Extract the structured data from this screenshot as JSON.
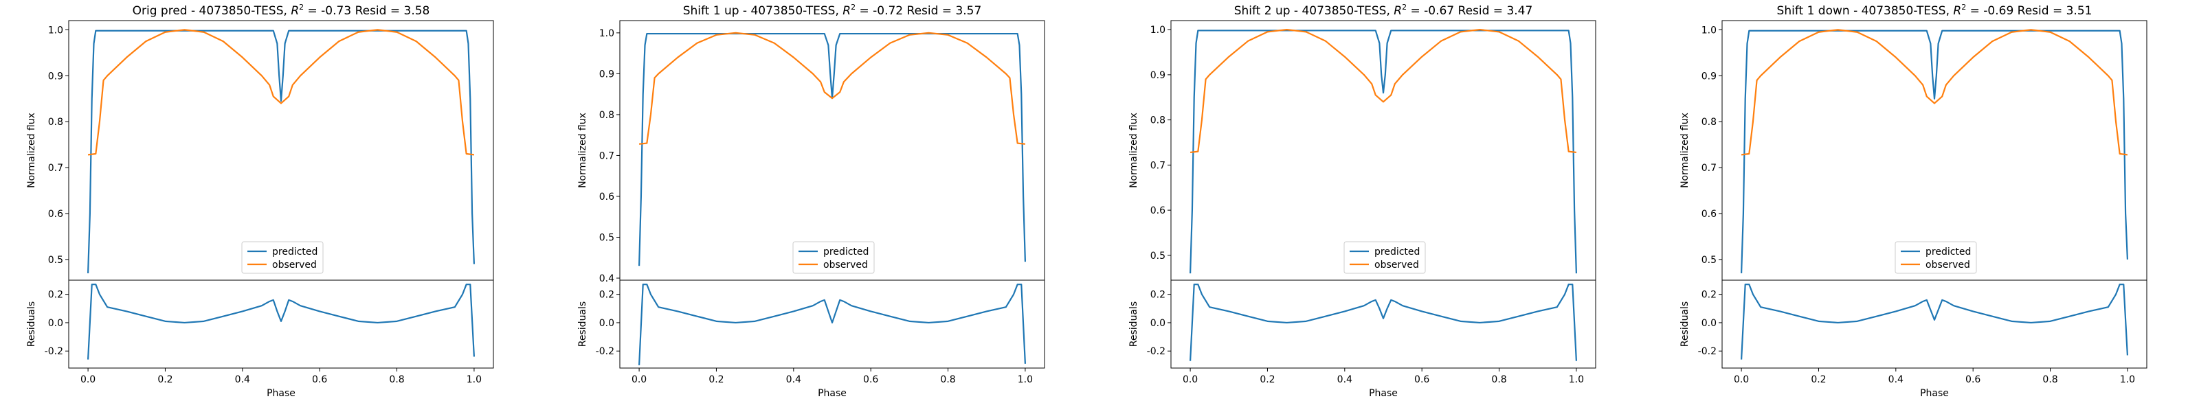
{
  "chart_data": [
    {
      "type": "line",
      "title": "Orig pred - 4073850-TESS, $R^2$ = -0.73 Resid = 3.58",
      "title_text": {
        "prefix": "Orig pred - 4073850-TESS, ",
        "r2": "R",
        "sup": "2",
        "suffix": " = -0.73 Resid = 3.58"
      },
      "xlabel": "Phase",
      "ylabel_top": "Normalized flux",
      "ylabel_bottom": "Residuals",
      "xlim": [
        -0.05,
        1.05
      ],
      "ylim_top": [
        0.455,
        1.02
      ],
      "ylim_bottom": [
        -0.32,
        0.3
      ],
      "xticks": [
        "0.0",
        "0.2",
        "0.4",
        "0.6",
        "0.8",
        "1.0"
      ],
      "yticks_top": [
        "0.5",
        "0.6",
        "0.7",
        "0.8",
        "0.9",
        "1.0"
      ],
      "yticks_bottom": [
        "-0.2",
        "0.0",
        "0.2"
      ],
      "legend": {
        "position": "lower-center",
        "entries": [
          "predicted",
          "observed"
        ]
      },
      "pred_edge": 0.47,
      "dip_bottom": 0.845,
      "series": [
        {
          "name": "predicted",
          "color": "#1f77b4",
          "x": [
            0.0,
            0.005,
            0.01,
            0.015,
            0.02,
            0.48,
            0.49,
            0.495,
            0.5,
            0.505,
            0.51,
            0.52,
            0.98,
            0.985,
            0.99,
            0.995,
            1.0
          ],
          "y": [
            0.47,
            0.6,
            0.85,
            0.97,
            0.998,
            0.998,
            0.97,
            0.9,
            0.845,
            0.9,
            0.97,
            0.998,
            0.998,
            0.97,
            0.85,
            0.6,
            0.49
          ]
        },
        {
          "name": "observed",
          "color": "#ff7f0e",
          "x": [
            0.0,
            0.02,
            0.03,
            0.04,
            0.05,
            0.1,
            0.15,
            0.2,
            0.25,
            0.3,
            0.35,
            0.4,
            0.45,
            0.47,
            0.48,
            0.5,
            0.52,
            0.53,
            0.55,
            0.6,
            0.65,
            0.7,
            0.75,
            0.8,
            0.85,
            0.9,
            0.95,
            0.96,
            0.97,
            0.98,
            1.0
          ],
          "y": [
            0.728,
            0.73,
            0.8,
            0.89,
            0.9,
            0.94,
            0.975,
            0.995,
            1.0,
            0.995,
            0.975,
            0.94,
            0.9,
            0.88,
            0.855,
            0.84,
            0.855,
            0.88,
            0.9,
            0.94,
            0.975,
            0.995,
            1.0,
            0.995,
            0.975,
            0.94,
            0.9,
            0.89,
            0.8,
            0.73,
            0.728
          ]
        },
        {
          "name": "residuals",
          "color": "#1f77b4",
          "x": [
            0.0,
            0.01,
            0.02,
            0.03,
            0.05,
            0.1,
            0.15,
            0.2,
            0.25,
            0.3,
            0.35,
            0.4,
            0.45,
            0.47,
            0.48,
            0.49,
            0.5,
            0.51,
            0.52,
            0.53,
            0.55,
            0.6,
            0.65,
            0.7,
            0.75,
            0.8,
            0.85,
            0.9,
            0.95,
            0.97,
            0.98,
            0.99,
            1.0
          ],
          "y": [
            -0.26,
            0.27,
            0.27,
            0.2,
            0.11,
            0.08,
            0.045,
            0.01,
            0.0,
            0.01,
            0.045,
            0.08,
            0.12,
            0.15,
            0.16,
            0.08,
            0.01,
            0.08,
            0.16,
            0.15,
            0.12,
            0.08,
            0.045,
            0.01,
            0.0,
            0.01,
            0.045,
            0.08,
            0.11,
            0.2,
            0.27,
            0.27,
            -0.24
          ]
        }
      ]
    },
    {
      "type": "line",
      "title": "Shift 1 up - 4073850-TESS, $R^2$ = -0.72 Resid = 3.57",
      "title_text": {
        "prefix": "Shift 1 up - 4073850-TESS, ",
        "r2": "R",
        "sup": "2",
        "suffix": " = -0.72 Resid = 3.57"
      },
      "xlabel": "Phase",
      "ylabel_top": "Normalized flux",
      "ylabel_bottom": "Residuals",
      "xlim": [
        -0.05,
        1.05
      ],
      "ylim_top": [
        0.395,
        1.03
      ],
      "ylim_bottom": [
        -0.32,
        0.3
      ],
      "xticks": [
        "0.0",
        "0.2",
        "0.4",
        "0.6",
        "0.8",
        "1.0"
      ],
      "yticks_top": [
        "0.4",
        "0.5",
        "0.6",
        "0.7",
        "0.8",
        "0.9",
        "1.0"
      ],
      "yticks_bottom": [
        "-0.2",
        "0.0",
        "0.2"
      ],
      "legend": {
        "position": "lower-center",
        "entries": [
          "predicted",
          "observed"
        ]
      },
      "series": [
        {
          "name": "predicted",
          "color": "#1f77b4",
          "x": [
            0.0,
            0.005,
            0.01,
            0.015,
            0.02,
            0.48,
            0.49,
            0.495,
            0.5,
            0.505,
            0.51,
            0.52,
            0.98,
            0.985,
            0.99,
            0.995,
            1.0
          ],
          "y": [
            0.43,
            0.6,
            0.85,
            0.97,
            0.998,
            0.998,
            0.97,
            0.9,
            0.84,
            0.9,
            0.97,
            0.998,
            0.998,
            0.97,
            0.85,
            0.6,
            0.44
          ]
        },
        {
          "name": "observed",
          "color": "#ff7f0e",
          "x": [
            0.0,
            0.02,
            0.03,
            0.04,
            0.05,
            0.1,
            0.15,
            0.2,
            0.25,
            0.3,
            0.35,
            0.4,
            0.45,
            0.47,
            0.48,
            0.5,
            0.52,
            0.53,
            0.55,
            0.6,
            0.65,
            0.7,
            0.75,
            0.8,
            0.85,
            0.9,
            0.95,
            0.96,
            0.97,
            0.98,
            1.0
          ],
          "y": [
            0.728,
            0.73,
            0.8,
            0.89,
            0.9,
            0.94,
            0.975,
            0.995,
            1.0,
            0.995,
            0.975,
            0.94,
            0.9,
            0.88,
            0.855,
            0.84,
            0.855,
            0.88,
            0.9,
            0.94,
            0.975,
            0.995,
            1.0,
            0.995,
            0.975,
            0.94,
            0.9,
            0.89,
            0.8,
            0.73,
            0.728
          ]
        },
        {
          "name": "residuals",
          "color": "#1f77b4",
          "x": [
            0.0,
            0.01,
            0.02,
            0.03,
            0.05,
            0.1,
            0.15,
            0.2,
            0.25,
            0.3,
            0.35,
            0.4,
            0.45,
            0.47,
            0.48,
            0.49,
            0.5,
            0.51,
            0.52,
            0.53,
            0.55,
            0.6,
            0.65,
            0.7,
            0.75,
            0.8,
            0.85,
            0.9,
            0.95,
            0.97,
            0.98,
            0.99,
            1.0
          ],
          "y": [
            -0.3,
            0.27,
            0.27,
            0.2,
            0.11,
            0.08,
            0.045,
            0.01,
            0.0,
            0.01,
            0.045,
            0.08,
            0.12,
            0.15,
            0.16,
            0.08,
            0.0,
            0.08,
            0.16,
            0.15,
            0.12,
            0.08,
            0.045,
            0.01,
            0.0,
            0.01,
            0.045,
            0.08,
            0.11,
            0.2,
            0.27,
            0.27,
            -0.29
          ]
        }
      ]
    },
    {
      "type": "line",
      "title": "Shift 2 up - 4073850-TESS, $R^2$ = -0.67 Resid = 3.47",
      "title_text": {
        "prefix": "Shift 2 up - 4073850-TESS, ",
        "r2": "R",
        "sup": "2",
        "suffix": " = -0.67 Resid = 3.47"
      },
      "xlabel": "Phase",
      "ylabel_top": "Normalized flux",
      "ylabel_bottom": "Residuals",
      "xlim": [
        -0.05,
        1.05
      ],
      "ylim_top": [
        0.445,
        1.02
      ],
      "ylim_bottom": [
        -0.32,
        0.3
      ],
      "xticks": [
        "0.0",
        "0.2",
        "0.4",
        "0.6",
        "0.8",
        "1.0"
      ],
      "yticks_top": [
        "0.5",
        "0.6",
        "0.7",
        "0.8",
        "0.9",
        "1.0"
      ],
      "yticks_bottom": [
        "-0.2",
        "0.0",
        "0.2"
      ],
      "legend": {
        "position": "lower-center",
        "entries": [
          "predicted",
          "observed"
        ]
      },
      "series": [
        {
          "name": "predicted",
          "color": "#1f77b4",
          "x": [
            0.0,
            0.005,
            0.01,
            0.015,
            0.02,
            0.48,
            0.49,
            0.495,
            0.5,
            0.505,
            0.51,
            0.52,
            0.98,
            0.985,
            0.99,
            0.995,
            1.0
          ],
          "y": [
            0.46,
            0.6,
            0.85,
            0.97,
            0.998,
            0.998,
            0.97,
            0.9,
            0.86,
            0.9,
            0.97,
            0.998,
            0.998,
            0.97,
            0.85,
            0.6,
            0.46
          ]
        },
        {
          "name": "observed",
          "color": "#ff7f0e",
          "x": [
            0.0,
            0.02,
            0.03,
            0.04,
            0.05,
            0.1,
            0.15,
            0.2,
            0.25,
            0.3,
            0.35,
            0.4,
            0.45,
            0.47,
            0.48,
            0.5,
            0.52,
            0.53,
            0.55,
            0.6,
            0.65,
            0.7,
            0.75,
            0.8,
            0.85,
            0.9,
            0.95,
            0.96,
            0.97,
            0.98,
            1.0
          ],
          "y": [
            0.728,
            0.73,
            0.8,
            0.89,
            0.9,
            0.94,
            0.975,
            0.995,
            1.0,
            0.995,
            0.975,
            0.94,
            0.9,
            0.88,
            0.855,
            0.84,
            0.855,
            0.88,
            0.9,
            0.94,
            0.975,
            0.995,
            1.0,
            0.995,
            0.975,
            0.94,
            0.9,
            0.89,
            0.8,
            0.73,
            0.728
          ]
        },
        {
          "name": "residuals",
          "color": "#1f77b4",
          "x": [
            0.0,
            0.01,
            0.02,
            0.03,
            0.05,
            0.1,
            0.15,
            0.2,
            0.25,
            0.3,
            0.35,
            0.4,
            0.45,
            0.47,
            0.48,
            0.49,
            0.5,
            0.51,
            0.52,
            0.53,
            0.55,
            0.6,
            0.65,
            0.7,
            0.75,
            0.8,
            0.85,
            0.9,
            0.95,
            0.97,
            0.98,
            0.99,
            1.0
          ],
          "y": [
            -0.27,
            0.27,
            0.27,
            0.2,
            0.11,
            0.08,
            0.045,
            0.01,
            0.0,
            0.01,
            0.045,
            0.08,
            0.12,
            0.15,
            0.16,
            0.1,
            0.03,
            0.1,
            0.16,
            0.15,
            0.12,
            0.08,
            0.045,
            0.01,
            0.0,
            0.01,
            0.045,
            0.08,
            0.11,
            0.2,
            0.27,
            0.27,
            -0.27
          ]
        }
      ]
    },
    {
      "type": "line",
      "title": "Shift 1 down - 4073850-TESS, $R^2$ = -0.69 Resid = 3.51",
      "title_text": {
        "prefix": "Shift 1 down - 4073850-TESS, ",
        "r2": "R",
        "sup": "2",
        "suffix": " = -0.69 Resid = 3.51"
      },
      "xlabel": "Phase",
      "ylabel_top": "Normalized flux",
      "ylabel_bottom": "Residuals",
      "xlim": [
        -0.05,
        1.05
      ],
      "ylim_top": [
        0.455,
        1.02
      ],
      "ylim_bottom": [
        -0.32,
        0.3
      ],
      "xticks": [
        "0.0",
        "0.2",
        "0.4",
        "0.6",
        "0.8",
        "1.0"
      ],
      "yticks_top": [
        "0.5",
        "0.6",
        "0.7",
        "0.8",
        "0.9",
        "1.0"
      ],
      "yticks_bottom": [
        "-0.2",
        "0.0",
        "0.2"
      ],
      "legend": {
        "position": "lower-center",
        "entries": [
          "predicted",
          "observed"
        ]
      },
      "series": [
        {
          "name": "predicted",
          "color": "#1f77b4",
          "x": [
            0.0,
            0.005,
            0.01,
            0.015,
            0.02,
            0.48,
            0.49,
            0.495,
            0.5,
            0.505,
            0.51,
            0.52,
            0.98,
            0.985,
            0.99,
            0.995,
            1.0
          ],
          "y": [
            0.47,
            0.6,
            0.85,
            0.97,
            0.998,
            0.998,
            0.97,
            0.9,
            0.85,
            0.9,
            0.97,
            0.998,
            0.998,
            0.97,
            0.85,
            0.6,
            0.5
          ]
        },
        {
          "name": "observed",
          "color": "#ff7f0e",
          "x": [
            0.0,
            0.02,
            0.03,
            0.04,
            0.05,
            0.1,
            0.15,
            0.2,
            0.25,
            0.3,
            0.35,
            0.4,
            0.45,
            0.47,
            0.48,
            0.5,
            0.52,
            0.53,
            0.55,
            0.6,
            0.65,
            0.7,
            0.75,
            0.8,
            0.85,
            0.9,
            0.95,
            0.96,
            0.97,
            0.98,
            1.0
          ],
          "y": [
            0.728,
            0.73,
            0.8,
            0.89,
            0.9,
            0.94,
            0.975,
            0.995,
            1.0,
            0.995,
            0.975,
            0.94,
            0.9,
            0.88,
            0.855,
            0.84,
            0.855,
            0.88,
            0.9,
            0.94,
            0.975,
            0.995,
            1.0,
            0.995,
            0.975,
            0.94,
            0.9,
            0.89,
            0.8,
            0.73,
            0.728
          ]
        },
        {
          "name": "residuals",
          "color": "#1f77b4",
          "x": [
            0.0,
            0.01,
            0.02,
            0.03,
            0.05,
            0.1,
            0.15,
            0.2,
            0.25,
            0.3,
            0.35,
            0.4,
            0.45,
            0.47,
            0.48,
            0.49,
            0.5,
            0.51,
            0.52,
            0.53,
            0.55,
            0.6,
            0.65,
            0.7,
            0.75,
            0.8,
            0.85,
            0.9,
            0.95,
            0.97,
            0.98,
            0.99,
            1.0
          ],
          "y": [
            -0.26,
            0.27,
            0.27,
            0.2,
            0.11,
            0.08,
            0.045,
            0.01,
            0.0,
            0.01,
            0.045,
            0.08,
            0.12,
            0.15,
            0.16,
            0.09,
            0.02,
            0.09,
            0.16,
            0.15,
            0.12,
            0.08,
            0.045,
            0.01,
            0.0,
            0.01,
            0.045,
            0.08,
            0.11,
            0.2,
            0.27,
            0.27,
            -0.23
          ]
        }
      ]
    }
  ]
}
